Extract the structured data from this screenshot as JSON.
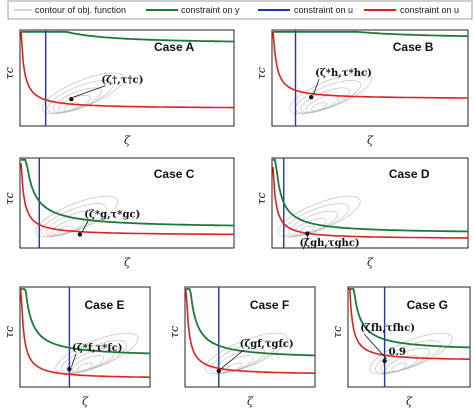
{
  "legend": [
    {
      "label": "contour of obj. function",
      "color": "#aaaaaa"
    },
    {
      "label": "constraint on y",
      "color": "#1a7a3a"
    },
    {
      "label": "constraint on u",
      "color": "#2233aa"
    },
    {
      "label": "constraint on u",
      "color": "#dd2222"
    }
  ],
  "colors": {
    "constraint_y": "#1a7a3a",
    "constraint_u_vertical": "#2233aa",
    "constraint_u_red": "#dd2222",
    "contour": "#bbbbbb"
  },
  "chart_data": [
    {
      "type": "line",
      "title": "Case A",
      "xlabel": "ζ",
      "ylabel": "τ",
      "ylabel_sub": "c",
      "point_label": "(ζ†,τ†c)"
    },
    {
      "type": "line",
      "title": "Case B",
      "xlabel": "ζ",
      "ylabel": "τ",
      "ylabel_sub": "c",
      "point_label": "(ζ*h,τ*hc)"
    },
    {
      "type": "line",
      "title": "Case C",
      "xlabel": "ζ",
      "ylabel": "τ",
      "ylabel_sub": "c",
      "point_label": "(ζ*g,τ*gc)"
    },
    {
      "type": "line",
      "title": "Case D",
      "xlabel": "ζ",
      "ylabel": "τ",
      "ylabel_sub": "c",
      "point_label": "(ζgh,τghc)"
    },
    {
      "type": "line",
      "title": "Case E",
      "xlabel": "ζ",
      "ylabel": "τ",
      "ylabel_sub": "c",
      "point_label": "(ζ*f,τ*fc)"
    },
    {
      "type": "line",
      "title": "Case F",
      "xlabel": "ζ",
      "ylabel": "τ",
      "ylabel_sub": "c",
      "point_label": "(ζgf,τgfc)"
    },
    {
      "type": "line",
      "title": "Case G",
      "xlabel": "ζ",
      "ylabel": "τ",
      "ylabel_sub": "c",
      "point_label": "(ζfh,τfhc)",
      "point_label_2": "0.9"
    }
  ]
}
